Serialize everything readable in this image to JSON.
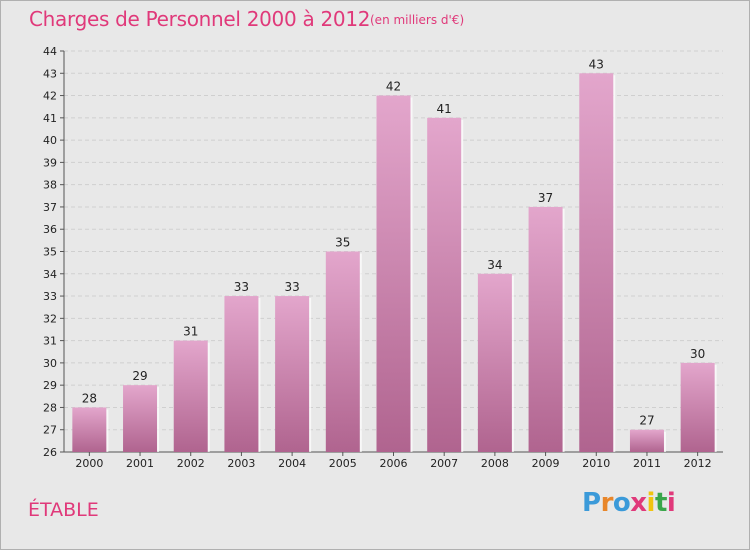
{
  "header": {
    "title": "Charges de Personnel 2000 à 2012",
    "subtitle": "(en milliers d'€)"
  },
  "commune": "ÉTABLE",
  "logo": {
    "text": "Proxiti",
    "colors": [
      "#3b9ad9",
      "#e8862a",
      "#3b9ad9",
      "#e0397a",
      "#f1c40f",
      "#3aa64a",
      "#e0397a"
    ]
  },
  "colors": {
    "bar_top": "#e3a6cc",
    "bar_bottom": "#b0648f",
    "accent": "#e0397a"
  },
  "chart_data": {
    "type": "bar",
    "title": "Charges de Personnel 2000 à 2012",
    "subtitle": "(en milliers d'€)",
    "categories": [
      "2000",
      "2001",
      "2002",
      "2003",
      "2004",
      "2005",
      "2006",
      "2007",
      "2008",
      "2009",
      "2010",
      "2011",
      "2012"
    ],
    "values": [
      28,
      29,
      31,
      33,
      33,
      35,
      42,
      41,
      34,
      37,
      43,
      27,
      30
    ],
    "ylim": [
      26,
      44
    ],
    "yticks": [
      26,
      27,
      28,
      29,
      30,
      31,
      32,
      33,
      34,
      35,
      36,
      37,
      38,
      39,
      40,
      41,
      42,
      43,
      44
    ],
    "grid": true,
    "data_labels": true
  }
}
